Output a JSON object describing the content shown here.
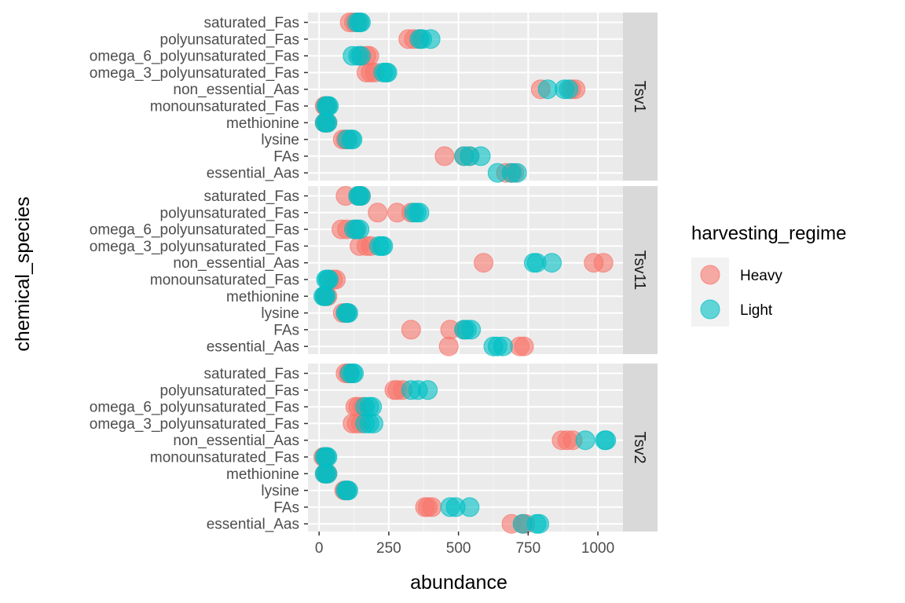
{
  "chart_data": {
    "type": "scatter",
    "xlabel": "abundance",
    "ylabel": "chemical_species",
    "xlim": [
      -40,
      1090
    ],
    "x_ticks": [
      0,
      250,
      500,
      750,
      1000
    ],
    "categories": [
      "essential_Aas",
      "FAs",
      "lysine",
      "methionine",
      "monounsaturated_Fas",
      "non_essential_Aas",
      "omega_3_polyunsaturated_Fas",
      "omega_6_polyunsaturated_Fas",
      "polyunsaturated_Fas",
      "saturated_Fas"
    ],
    "grid": true,
    "facet_labels": [
      "Tsv1",
      "Tsv11",
      "Tsv2"
    ],
    "legend": {
      "title": "harvesting_regime",
      "position": "right",
      "entries": [
        {
          "label": "Heavy",
          "color": "#F8766D"
        },
        {
          "label": "Light",
          "color": "#00BFC4"
        }
      ]
    },
    "panels": [
      {
        "facet": "Tsv1",
        "points": {
          "Heavy": {
            "saturated_Fas": [
              110,
              125,
              140
            ],
            "polyunsaturated_Fas": [
              320,
              340,
              360
            ],
            "omega_6_polyunsaturated_Fas": [
              150,
              170,
              180
            ],
            "omega_3_polyunsaturated_Fas": [
              170,
              185,
              200
            ],
            "non_essential_Aas": [
              795,
              905,
              920
            ],
            "monounsaturated_Fas": [
              20,
              25,
              30
            ],
            "methionine": [
              20,
              25,
              30
            ],
            "lysine": [
              85,
              95,
              105
            ],
            "FAs": [
              450,
              520,
              540
            ],
            "essential_Aas": [
              670,
              690,
              700
            ]
          },
          "Light": {
            "saturated_Fas": [
              135,
              145,
              150
            ],
            "polyunsaturated_Fas": [
              360,
              370,
              400
            ],
            "omega_6_polyunsaturated_Fas": [
              120,
              140,
              150
            ],
            "omega_3_polyunsaturated_Fas": [
              230,
              240,
              245
            ],
            "non_essential_Aas": [
              820,
              880,
              895
            ],
            "monounsaturated_Fas": [
              25,
              30,
              35
            ],
            "methionine": [
              20,
              25,
              30
            ],
            "lysine": [
              100,
              115,
              120
            ],
            "FAs": [
              520,
              540,
              580
            ],
            "essential_Aas": [
              640,
              690,
              710
            ]
          }
        }
      },
      {
        "facet": "Tsv11",
        "points": {
          "Heavy": {
            "saturated_Fas": [
              95,
              140,
              150
            ],
            "polyunsaturated_Fas": [
              210,
              280,
              330
            ],
            "omega_6_polyunsaturated_Fas": [
              80,
              100,
              130
            ],
            "omega_3_polyunsaturated_Fas": [
              145,
              170,
              185
            ],
            "non_essential_Aas": [
              590,
              985,
              1020
            ],
            "monounsaturated_Fas": [
              35,
              50,
              60
            ],
            "methionine": [
              20,
              25,
              30
            ],
            "lysine": [
              85,
              95,
              100
            ],
            "FAs": [
              330,
              470,
              520
            ],
            "essential_Aas": [
              465,
              720,
              735
            ]
          },
          "Light": {
            "saturated_Fas": [
              140,
              145,
              150
            ],
            "polyunsaturated_Fas": [
              340,
              350,
              360
            ],
            "omega_6_polyunsaturated_Fas": [
              125,
              135,
              145
            ],
            "omega_3_polyunsaturated_Fas": [
              215,
              225,
              230
            ],
            "non_essential_Aas": [
              770,
              780,
              835
            ],
            "monounsaturated_Fas": [
              25,
              30,
              35
            ],
            "methionine": [
              15,
              20,
              25
            ],
            "lysine": [
              95,
              100,
              105
            ],
            "FAs": [
              520,
              530,
              545
            ],
            "essential_Aas": [
              625,
              640,
              660
            ]
          }
        }
      },
      {
        "facet": "Tsv2",
        "points": {
          "Heavy": {
            "saturated_Fas": [
              95,
              105,
              110
            ],
            "polyunsaturated_Fas": [
              270,
              280,
              300
            ],
            "omega_6_polyunsaturated_Fas": [
              130,
              140,
              155
            ],
            "omega_3_polyunsaturated_Fas": [
              120,
              135,
              150
            ],
            "non_essential_Aas": [
              870,
              890,
              910
            ],
            "monounsaturated_Fas": [
              15,
              20,
              25
            ],
            "methionine": [
              20,
              25,
              30
            ],
            "lysine": [
              90,
              95,
              100
            ],
            "FAs": [
              380,
              390,
              405
            ],
            "essential_Aas": [
              690,
              730,
              740
            ]
          },
          "Light": {
            "saturated_Fas": [
              110,
              120,
              125
            ],
            "polyunsaturated_Fas": [
              330,
              355,
              390
            ],
            "omega_6_polyunsaturated_Fas": [
              165,
              180,
              190
            ],
            "omega_3_polyunsaturated_Fas": [
              165,
              180,
              195
            ],
            "non_essential_Aas": [
              955,
              1025,
              1030
            ],
            "monounsaturated_Fas": [
              20,
              25,
              30
            ],
            "methionine": [
              20,
              25,
              30
            ],
            "lysine": [
              95,
              100,
              105
            ],
            "FAs": [
              470,
              490,
              540
            ],
            "essential_Aas": [
              730,
              780,
              790
            ]
          }
        }
      }
    ]
  }
}
